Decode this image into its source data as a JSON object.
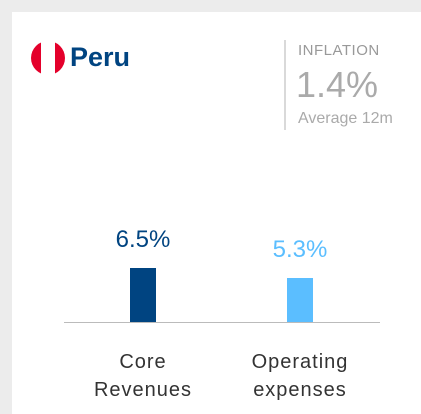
{
  "header": {
    "title": "Peru"
  },
  "inflation": {
    "label": "INFLATION",
    "value": "1.4%",
    "note": "Average 12m"
  },
  "chart_data": {
    "type": "bar",
    "categories": [
      "Core Revenues",
      "Operating expenses"
    ],
    "values": [
      6.5,
      5.3
    ],
    "value_labels": [
      "6.5%",
      "5.3%"
    ],
    "colors": [
      "#004481",
      "#5bbeff"
    ]
  }
}
